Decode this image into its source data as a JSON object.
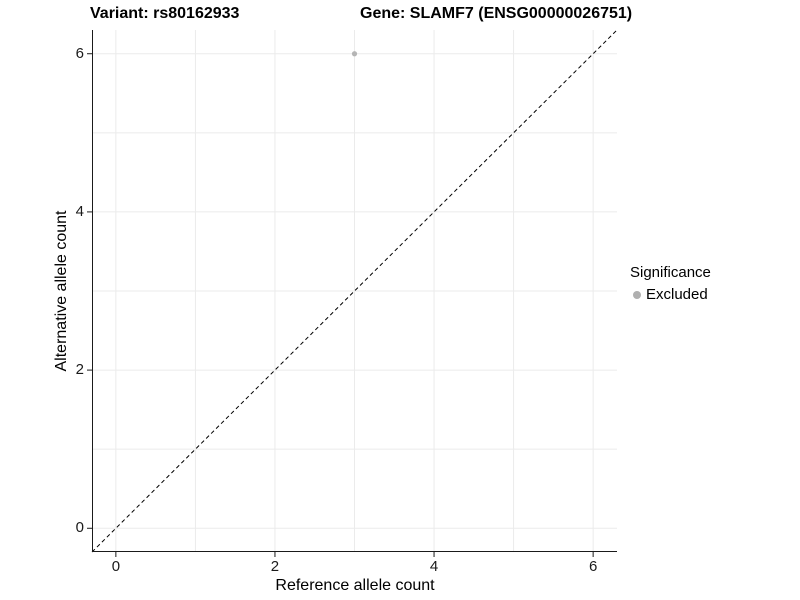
{
  "chart_data": {
    "type": "scatter",
    "title_parts": {
      "variant": "Variant: rs80162933",
      "gene": "Gene: SLAMF7 (ENSG00000026751)"
    },
    "xlabel": "Reference allele count",
    "ylabel": "Alternative allele count",
    "xlim": [
      -0.3,
      6.3
    ],
    "ylim": [
      -0.3,
      6.3
    ],
    "xticks": [
      0,
      2,
      4,
      6
    ],
    "yticks": [
      0,
      2,
      4,
      6
    ],
    "grid_positions": [
      0,
      1,
      2,
      3,
      4,
      5,
      6
    ],
    "grid": true,
    "series": [
      {
        "name": "Excluded",
        "color": "#b5b5b5",
        "points": [
          {
            "x": 3,
            "y": 6
          }
        ]
      }
    ],
    "reference_line": {
      "type": "identity",
      "slope": 1,
      "intercept": 0,
      "style": "dashed",
      "color": "#000000"
    },
    "legend": {
      "title": "Significance",
      "position": "right",
      "items": [
        {
          "label": "Excluded",
          "color": "#b0b0b0",
          "marker": "circle"
        }
      ]
    }
  },
  "colors": {
    "background": "#ffffff",
    "gridline": "#ebebeb",
    "axis": "#1a1a1a",
    "tick_text": "#1a1a1a",
    "title_text": "#000000"
  }
}
